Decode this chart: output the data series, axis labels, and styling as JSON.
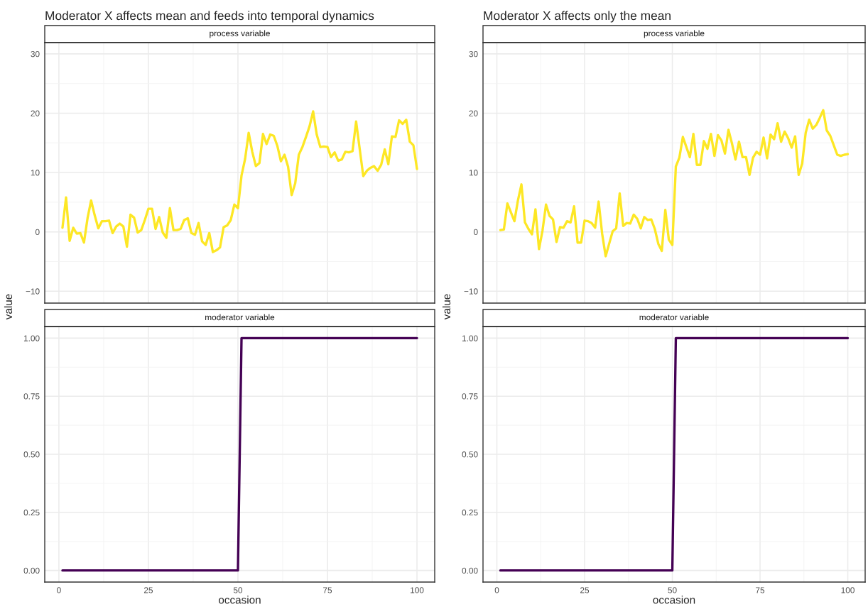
{
  "chart_data": [
    {
      "type": "line",
      "title": "Moderator X affects mean and feeds into temporal dynamics",
      "subtitle": "process variable",
      "ylabel": "value",
      "xlim": [
        -3.95,
        104.95
      ],
      "xticks": [
        0,
        25,
        50,
        75,
        100
      ],
      "ylim": [
        -12,
        31.9
      ],
      "yticks": [
        {
          "value": -10,
          "label": "−10"
        },
        0,
        10,
        20,
        30
      ],
      "tick_labels": "y",
      "grid": true,
      "series": [
        {
          "color": "#fde725",
          "x": [
            1,
            2,
            3,
            4,
            5,
            6,
            7,
            8,
            9,
            10,
            11,
            12,
            13,
            14,
            15,
            16,
            17,
            18,
            19,
            20,
            21,
            22,
            23,
            24,
            25,
            26,
            27,
            28,
            29,
            30,
            31,
            32,
            33,
            34,
            35,
            36,
            37,
            38,
            39,
            40,
            41,
            42,
            43,
            44,
            45,
            46,
            47,
            48,
            49,
            50,
            51,
            52,
            53,
            54,
            55,
            56,
            57,
            58,
            59,
            60,
            61,
            62,
            63,
            64,
            65,
            66,
            67,
            68,
            69,
            70,
            71,
            72,
            73,
            74,
            75,
            76,
            77,
            78,
            79,
            80,
            81,
            82,
            83,
            84,
            85,
            86,
            87,
            88,
            89,
            90,
            91,
            92,
            93,
            94,
            95,
            96,
            97,
            98,
            99,
            100
          ],
          "values": [
            0.7,
            5.8,
            -1.5,
            0.7,
            -0.3,
            -0.2,
            -1.8,
            2.3,
            5.3,
            2.8,
            0.6,
            1.8,
            1.8,
            1.9,
            -0.2,
            0.9,
            1.4,
            0.9,
            -2.5,
            2.9,
            2.4,
            -0.1,
            0.3,
            2,
            3.9,
            3.9,
            0.5,
            2.5,
            -0.1,
            -1,
            4,
            0.3,
            0.3,
            0.5,
            2,
            2.3,
            -0.2,
            -0.5,
            1.5,
            -1.6,
            -2.2,
            -0.2,
            -3.4,
            -3.1,
            -2.6,
            0.8,
            1.1,
            2,
            4.6,
            4,
            9.5,
            12.3,
            16.7,
            13.5,
            11.1,
            11.6,
            16.5,
            14.8,
            16.4,
            16.2,
            14.5,
            11.9,
            13,
            11,
            6.2,
            8.2,
            13,
            14.3,
            16,
            17.8,
            20.3,
            16.4,
            14.3,
            14.4,
            14.3,
            12.6,
            13.4,
            12,
            12.2,
            13.5,
            13.4,
            13.6,
            18.6,
            14,
            9.4,
            10.3,
            10.8,
            11.1,
            10.3,
            11.3,
            13.9,
            11.4,
            16.1,
            16,
            18.8,
            18.2,
            18.9,
            15.2,
            14.6,
            10.6
          ]
        }
      ]
    },
    {
      "type": "line",
      "subtitle": "moderator variable",
      "xlabel": "occasion",
      "xlim": [
        -3.95,
        104.95
      ],
      "xticks": [
        0,
        25,
        50,
        75,
        100
      ],
      "ylim": [
        -0.05,
        1.05
      ],
      "yticks": [
        {
          "value": 0,
          "label": "0.00"
        },
        {
          "value": 0.25,
          "label": "0.25"
        },
        {
          "value": 0.5,
          "label": "0.50"
        },
        {
          "value": 0.75,
          "label": "0.75"
        },
        {
          "value": 1,
          "label": "1.00"
        }
      ],
      "grid": true,
      "series": [
        {
          "color": "#440154",
          "x": [
            1,
            50,
            51,
            100
          ],
          "values": [
            0,
            0,
            1,
            1
          ]
        }
      ]
    },
    {
      "type": "line",
      "title": "Moderator X affects only the mean",
      "subtitle": "process variable",
      "ylabel": "value",
      "xlim": [
        -3.95,
        104.95
      ],
      "xticks": [
        0,
        25,
        50,
        75,
        100
      ],
      "ylim": [
        -12,
        31.9
      ],
      "yticks": [
        {
          "value": -10,
          "label": "−10"
        },
        0,
        10,
        20,
        30
      ],
      "tick_labels": "y",
      "grid": true,
      "series": [
        {
          "color": "#fde725",
          "x": [
            1,
            2,
            3,
            4,
            5,
            6,
            7,
            8,
            9,
            10,
            11,
            12,
            13,
            14,
            15,
            16,
            17,
            18,
            19,
            20,
            21,
            22,
            23,
            24,
            25,
            26,
            27,
            28,
            29,
            30,
            31,
            32,
            33,
            34,
            35,
            36,
            37,
            38,
            39,
            40,
            41,
            42,
            43,
            44,
            45,
            46,
            47,
            48,
            49,
            50,
            51,
            52,
            53,
            54,
            55,
            56,
            57,
            58,
            59,
            60,
            61,
            62,
            63,
            64,
            65,
            66,
            67,
            68,
            69,
            70,
            71,
            72,
            73,
            74,
            75,
            76,
            77,
            78,
            79,
            80,
            81,
            82,
            83,
            84,
            85,
            86,
            87,
            88,
            89,
            90,
            91,
            92,
            93,
            94,
            95,
            96,
            97,
            98,
            99,
            100
          ],
          "values": [
            0.3,
            0.4,
            4.8,
            3.3,
            1.8,
            5.3,
            8,
            1.6,
            0.5,
            -0.4,
            3.8,
            -2.9,
            0.2,
            4.6,
            2.7,
            2.1,
            -1.7,
            0.8,
            0.7,
            1.8,
            1.6,
            4.3,
            -1.8,
            -1.8,
            1.9,
            1.8,
            1.5,
            0.7,
            5.1,
            -0.3,
            -4.1,
            -2,
            0.1,
            0.6,
            6.5,
            1,
            1.5,
            1.4,
            2.9,
            2.2,
            0.6,
            2.5,
            2,
            2.1,
            0.5,
            -2,
            -3.2,
            3.7,
            -1.3,
            -2.2,
            11,
            12.5,
            16,
            14.3,
            12.6,
            16.5,
            11.3,
            11.3,
            15.3,
            14,
            16.5,
            12.8,
            16.3,
            15.4,
            13.2,
            17.2,
            14.9,
            12.2,
            15.2,
            12.6,
            12.6,
            9.6,
            12.5,
            13.5,
            13,
            15.9,
            12.4,
            16.4,
            15.6,
            18.3,
            15.2,
            16.9,
            15.8,
            14.2,
            16.1,
            9.6,
            11.5,
            16.7,
            18.9,
            17.4,
            18,
            19.2,
            20.5,
            17.1,
            16.2,
            14.6,
            13,
            12.8,
            13,
            13.1
          ]
        }
      ]
    },
    {
      "type": "line",
      "subtitle": "moderator variable",
      "xlabel": "occasion",
      "xlim": [
        -3.95,
        104.95
      ],
      "xticks": [
        0,
        25,
        50,
        75,
        100
      ],
      "ylim": [
        -0.05,
        1.05
      ],
      "yticks": [
        {
          "value": 0,
          "label": "0.00"
        },
        {
          "value": 0.25,
          "label": "0.25"
        },
        {
          "value": 0.5,
          "label": "0.50"
        },
        {
          "value": 0.75,
          "label": "0.75"
        },
        {
          "value": 1,
          "label": "1.00"
        }
      ],
      "grid": true,
      "series": [
        {
          "color": "#440154",
          "x": [
            1,
            50,
            51,
            100
          ],
          "values": [
            0,
            0,
            1,
            1
          ]
        }
      ]
    }
  ]
}
